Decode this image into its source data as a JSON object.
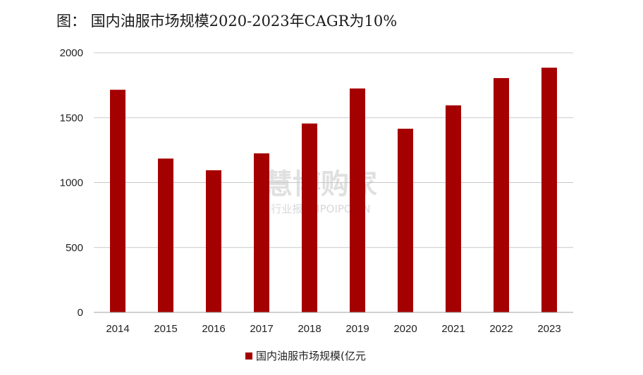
{
  "figure": {
    "title": "图：  国内油服市场规模2020-2023年CAGR为10%"
  },
  "watermark": {
    "main": "慧博购家",
    "sub": "行业报告 IPOIPO.CN"
  },
  "colors": {
    "bar": "#a50000",
    "grid": "#c8c8c8",
    "axis": "#a0a0a0"
  },
  "chart_data": {
    "type": "bar",
    "title": "图：  国内油服市场规模2020-2023年CAGR为10%",
    "xlabel": "",
    "ylabel": "",
    "categories": [
      "2014",
      "2015",
      "2016",
      "2017",
      "2018",
      "2019",
      "2020",
      "2021",
      "2022",
      "2023"
    ],
    "series": [
      {
        "name": "国内油服市场规模(亿元",
        "values": [
          1715,
          1185,
          1095,
          1225,
          1455,
          1725,
          1415,
          1595,
          1805,
          1885
        ]
      }
    ],
    "ylim": [
      0,
      2000
    ],
    "yticks": [
      "0",
      "500",
      "1000",
      "1500",
      "2000"
    ],
    "grid": true,
    "legend": "bottom-center"
  }
}
